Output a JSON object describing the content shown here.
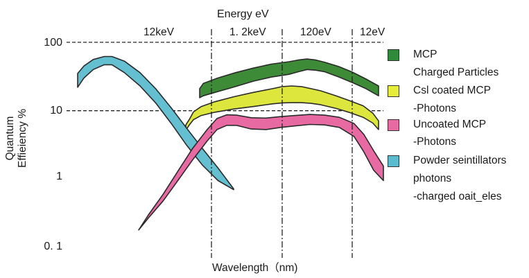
{
  "chart_data": {
    "type": "area",
    "title": "",
    "top_axis": {
      "label": "Energy  eV",
      "ticks": [
        "12keV",
        "1. 2keV",
        "120eV",
        "12eV"
      ]
    },
    "xlabel": "Wavelength（nm)",
    "ylabel": [
      "Quantum",
      "Effieiency %"
    ],
    "yscale": "log",
    "ylim": [
      0.1,
      100
    ],
    "yticks": [
      {
        "value": 100,
        "label": "100"
      },
      {
        "value": 10,
        "label": "10"
      },
      {
        "value": 1,
        "label": "1"
      },
      {
        "value": 0.1,
        "label": "0. 1"
      }
    ],
    "decade_guides": [
      100,
      10
    ],
    "series": [
      {
        "name": "MCP",
        "color": "#3d8a37",
        "band": [
          {
            "u": 0.0,
            "lo": 15.5,
            "hi": 21
          },
          {
            "u": 0.02,
            "lo": 16.5,
            "hi": 25
          },
          {
            "u": 0.1,
            "lo": 19,
            "hi": 30
          },
          {
            "u": 0.2,
            "lo": 22.5,
            "hi": 36
          },
          {
            "u": 0.3,
            "lo": 27,
            "hi": 42
          },
          {
            "u": 0.4,
            "lo": 31,
            "hi": 48
          },
          {
            "u": 0.5,
            "lo": 34,
            "hi": 52
          },
          {
            "u": 0.55,
            "lo": 37,
            "hi": 55
          },
          {
            "u": 0.6,
            "lo": 40,
            "hi": 57
          },
          {
            "u": 0.65,
            "lo": 39,
            "hi": 55
          },
          {
            "u": 0.7,
            "lo": 37,
            "hi": 51
          },
          {
            "u": 0.78,
            "lo": 31,
            "hi": 44
          },
          {
            "u": 0.85,
            "lo": 26,
            "hi": 37
          },
          {
            "u": 0.93,
            "lo": 21,
            "hi": 29
          },
          {
            "u": 1.0,
            "lo": 16.5,
            "hi": 23
          }
        ]
      },
      {
        "name": "Csl coated MCP -Photons",
        "color": "#dde63c",
        "band": [
          {
            "u": 0.0,
            "lo": 5.2,
            "hi": 6.2
          },
          {
            "u": 0.02,
            "lo": 6.3,
            "hi": 7.6
          },
          {
            "u": 0.04,
            "lo": 7.4,
            "hi": 9.6
          },
          {
            "u": 0.08,
            "lo": 8.5,
            "hi": 11.5
          },
          {
            "u": 0.15,
            "lo": 9.5,
            "hi": 13.5
          },
          {
            "u": 0.25,
            "lo": 10.6,
            "hi": 16
          },
          {
            "u": 0.35,
            "lo": 11.5,
            "hi": 18.5
          },
          {
            "u": 0.45,
            "lo": 12.6,
            "hi": 21
          },
          {
            "u": 0.5,
            "lo": 13,
            "hi": 22.5
          },
          {
            "u": 0.55,
            "lo": 13.1,
            "hi": 23
          },
          {
            "u": 0.6,
            "lo": 13.1,
            "hi": 22.5
          },
          {
            "u": 0.65,
            "lo": 12.8,
            "hi": 21
          },
          {
            "u": 0.7,
            "lo": 12.2,
            "hi": 19.5
          },
          {
            "u": 0.78,
            "lo": 10.8,
            "hi": 16.5
          },
          {
            "u": 0.85,
            "lo": 9.4,
            "hi": 14
          },
          {
            "u": 0.92,
            "lo": 8,
            "hi": 11.8
          },
          {
            "u": 0.97,
            "lo": 6.6,
            "hi": 9.2
          },
          {
            "u": 1.0,
            "lo": 5.3,
            "hi": 7.1
          }
        ]
      },
      {
        "name": "Uncoated MCP -Photons",
        "color": "#e86aa2",
        "band": [
          {
            "u": 0.0,
            "lo": 0.18,
            "hi": 0.18
          },
          {
            "u": 0.04,
            "lo": 0.27,
            "hi": 0.3
          },
          {
            "u": 0.1,
            "lo": 0.48,
            "hi": 0.6
          },
          {
            "u": 0.16,
            "lo": 0.95,
            "hi": 1.3
          },
          {
            "u": 0.22,
            "lo": 1.9,
            "hi": 2.8
          },
          {
            "u": 0.28,
            "lo": 3.6,
            "hi": 5.3
          },
          {
            "u": 0.32,
            "lo": 5.3,
            "hi": 7.7
          },
          {
            "u": 0.36,
            "lo": 6.1,
            "hi": 8.7
          },
          {
            "u": 0.4,
            "lo": 6.1,
            "hi": 8.6
          },
          {
            "u": 0.46,
            "lo": 5.4,
            "hi": 7.9
          },
          {
            "u": 0.52,
            "lo": 5.3,
            "hi": 7.8
          },
          {
            "u": 0.58,
            "lo": 5.7,
            "hi": 8.2
          },
          {
            "u": 0.64,
            "lo": 6.0,
            "hi": 8.5
          },
          {
            "u": 0.7,
            "lo": 6.3,
            "hi": 8.8
          },
          {
            "u": 0.76,
            "lo": 6.2,
            "hi": 8.6
          },
          {
            "u": 0.82,
            "lo": 5.7,
            "hi": 8.0
          },
          {
            "u": 0.88,
            "lo": 4.2,
            "hi": 6.5
          },
          {
            "u": 0.92,
            "lo": 2.5,
            "hi": 4.5
          },
          {
            "u": 0.96,
            "lo": 1.35,
            "hi": 2.6
          },
          {
            "u": 1.0,
            "lo": 0.95,
            "hi": 1.55
          }
        ]
      },
      {
        "name": "Powder seintillators photons -charged oait_eles",
        "color": "#64bfd0",
        "band": [
          {
            "u": 0.0,
            "lo": 22,
            "hi": 35
          },
          {
            "u": 0.04,
            "lo": 30,
            "hi": 45
          },
          {
            "u": 0.1,
            "lo": 40,
            "hi": 56
          },
          {
            "u": 0.17,
            "lo": 47,
            "hi": 62
          },
          {
            "u": 0.22,
            "lo": 47,
            "hi": 62
          },
          {
            "u": 0.3,
            "lo": 36,
            "hi": 53
          },
          {
            "u": 0.4,
            "lo": 23,
            "hi": 36
          },
          {
            "u": 0.5,
            "lo": 13,
            "hi": 21
          },
          {
            "u": 0.6,
            "lo": 6.5,
            "hi": 11
          },
          {
            "u": 0.7,
            "lo": 3.1,
            "hi": 5.5
          },
          {
            "u": 0.8,
            "lo": 1.6,
            "hi": 2.8
          },
          {
            "u": 0.9,
            "lo": 0.95,
            "hi": 1.45
          },
          {
            "u": 1.0,
            "lo": 0.7,
            "hi": 0.72
          }
        ]
      }
    ],
    "legend": {
      "position": "right",
      "entries": [
        {
          "swatch": "#2f8a3a",
          "lines": [
            "MCP",
            "Charged Particles"
          ]
        },
        {
          "swatch": "#e6ec3a",
          "lines": [
            "Csl coated MCP",
            "-Photons"
          ]
        },
        {
          "swatch": "#e86aa2",
          "lines": [
            "Uncoated MCP",
            "-Photons"
          ]
        },
        {
          "swatch": "#5bbccf",
          "lines": [
            "Powder seintillators",
            "photons",
            "-charged oait_eles"
          ]
        }
      ]
    },
    "grid": false
  }
}
